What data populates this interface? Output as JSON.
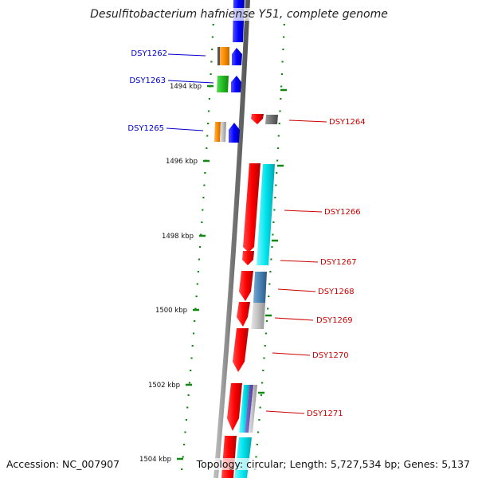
{
  "title": "Desulfitobacterium hafniense Y51, complete genome",
  "accession": "Accession: NC_007907",
  "topology": "Topology: circular; Length: 5,727,534 bp; Genes: 5,137",
  "ruler_labels": [
    "1494 kbp",
    "1496 kbp",
    "1498 kbp",
    "1500 kbp",
    "1502 kbp",
    "1504 kbp"
  ],
  "colors": {
    "left_labels": "#0000cc",
    "right_labels": "#cc0000",
    "backbone": "#777777",
    "tick": "#118811",
    "forward_gene": "#0000ff",
    "reverse_gene": "#ff0000",
    "cyan_feature": "#00e5ee",
    "steelblue_feature": "#4682b4",
    "gray_feature": "#c0c0c0",
    "orange_feature": "#ff8c00",
    "green_feature": "#22bb22"
  },
  "genes": [
    {
      "id": "DSY1262",
      "side": "left"
    },
    {
      "id": "DSY1263",
      "side": "left"
    },
    {
      "id": "DSY1264",
      "side": "right"
    },
    {
      "id": "DSY1265",
      "side": "left"
    },
    {
      "id": "DSY1266",
      "side": "right"
    },
    {
      "id": "DSY1267",
      "side": "right"
    },
    {
      "id": "DSY1268",
      "side": "right"
    },
    {
      "id": "DSY1269",
      "side": "right"
    },
    {
      "id": "DSY1270",
      "side": "right"
    },
    {
      "id": "DSY1271",
      "side": "right"
    }
  ]
}
